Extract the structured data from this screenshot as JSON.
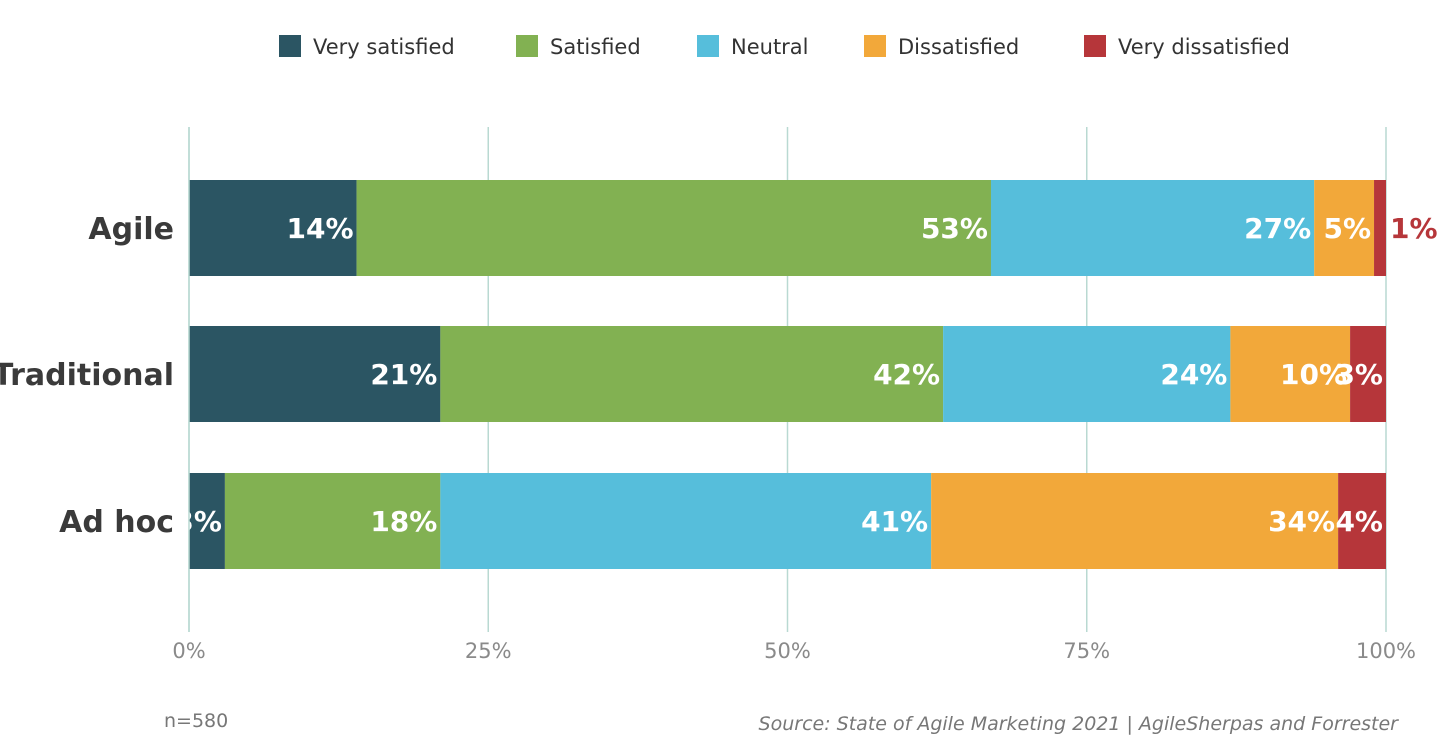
{
  "chart_data": {
    "type": "bar",
    "orientation": "horizontal",
    "stacked": true,
    "categories": [
      "Agile",
      "Traditional",
      "Ad hoc"
    ],
    "series": [
      {
        "name": "Very satisfied",
        "color": "#2b5563",
        "values": [
          14,
          21,
          3
        ],
        "labels": [
          "14%",
          "21%",
          "3%"
        ]
      },
      {
        "name": "Satisfied",
        "color": "#82b152",
        "values": [
          53,
          42,
          18
        ],
        "labels": [
          "53%",
          "42%",
          "18%"
        ]
      },
      {
        "name": "Neutral",
        "color": "#56bedb",
        "values": [
          27,
          24,
          41
        ],
        "labels": [
          "27%",
          "24%",
          "41%"
        ]
      },
      {
        "name": "Dissatisfied",
        "color": "#f2a83a",
        "values": [
          5,
          10,
          34
        ],
        "labels": [
          "5%",
          "10%",
          "34%"
        ]
      },
      {
        "name": "Very dissatisfied",
        "color": "#b6363a",
        "values": [
          1,
          3,
          4
        ],
        "labels": [
          "1%",
          "3%",
          "4%"
        ]
      }
    ],
    "xlim": [
      0,
      100
    ],
    "xticks": [
      0,
      25,
      50,
      75,
      100
    ],
    "xtick_labels": [
      "0%",
      "25%",
      "50%",
      "75%",
      "100%"
    ],
    "grid": true,
    "legend": "top"
  },
  "footnote": "n=580",
  "source": "Source: State of Agile Marketing 2021 | AgileSherpas and Forrester"
}
